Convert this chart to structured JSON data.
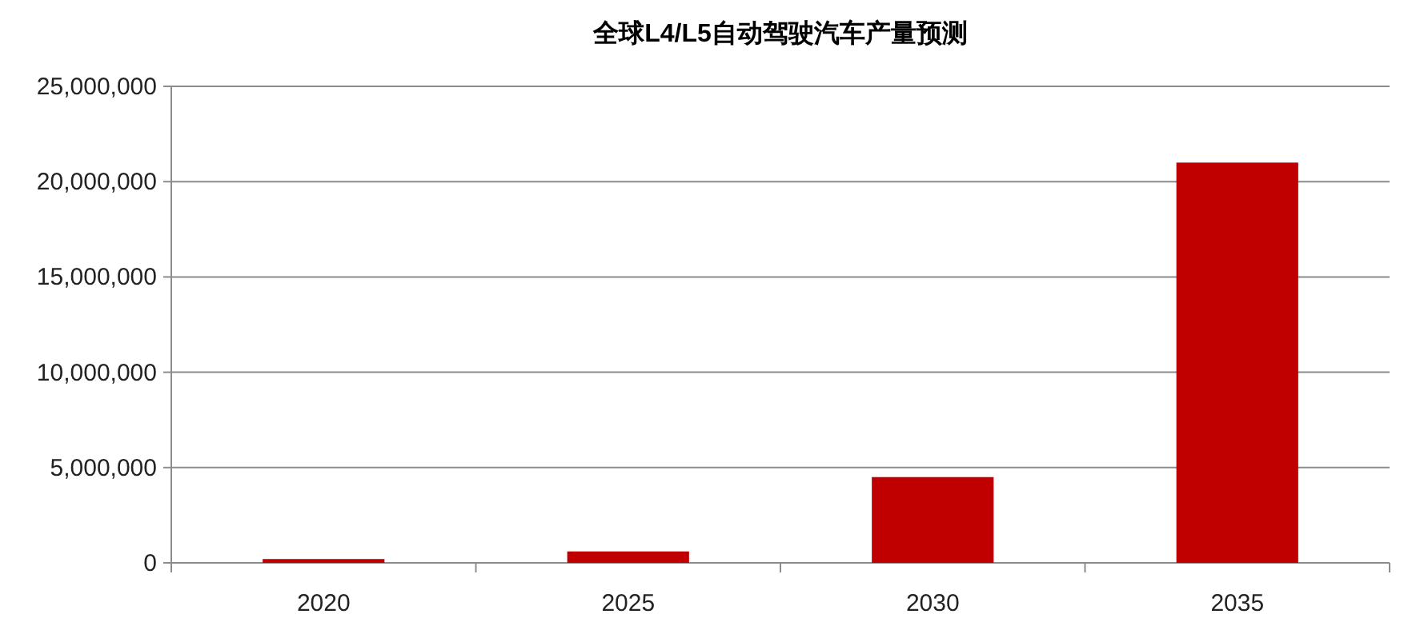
{
  "chart_data": {
    "type": "bar",
    "title": "全球L4/L5自动驾驶汽车产量预测",
    "categories": [
      "2020",
      "2025",
      "2030",
      "2035"
    ],
    "values": [
      200000,
      600000,
      4500000,
      21000000
    ],
    "color": "#c00000",
    "ylim": [
      0,
      25000000
    ],
    "yticks": [
      {
        "value": 0,
        "label": "0"
      },
      {
        "value": 5000000,
        "label": "5,000,000"
      },
      {
        "value": 10000000,
        "label": "10,000,000"
      },
      {
        "value": 15000000,
        "label": "15,000,000"
      },
      {
        "value": 20000000,
        "label": "20,000,000"
      },
      {
        "value": 25000000,
        "label": "25,000,000"
      }
    ],
    "grid": "y"
  }
}
